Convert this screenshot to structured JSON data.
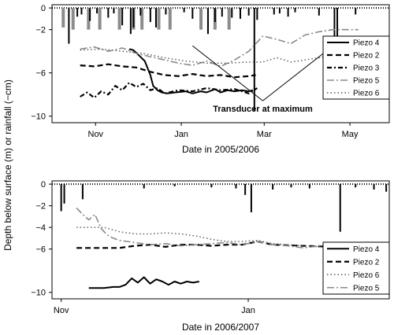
{
  "shared_ylabel": "Depth below surface (m) or rainfall (−cm)",
  "charts": [
    {
      "id": "top",
      "type": "line",
      "xlabel": "Date in 2005/2006",
      "x_tick_labels": [
        "Nov",
        "Jan",
        "Mar",
        "May"
      ],
      "x_tick_days": [
        31,
        92,
        151,
        212
      ],
      "xlim_days": [
        0,
        240
      ],
      "y_ticks": [
        0,
        -2,
        -6,
        -10
      ],
      "ylim": [
        -10.6,
        0.3
      ],
      "legend": [
        "Piezo 4",
        "Piezo 2",
        "Piezo 3",
        "Piezo 5",
        "Piezo 6"
      ],
      "annotation": "Transducer at maximum",
      "annotation_x_day": 150,
      "annotation_y": -9.3,
      "annotation_targets": [
        [
          100,
          -3.5
        ],
        [
          200,
          -3.5
        ]
      ]
    },
    {
      "id": "bottom",
      "type": "line",
      "xlabel": "Date in 2006/2007",
      "x_tick_labels": [
        "Nov",
        "Jan"
      ],
      "x_tick_days": [
        31,
        92
      ],
      "xlim_days": [
        28,
        138
      ],
      "y_ticks": [
        0,
        -2,
        -4,
        -6,
        -10
      ],
      "ylim": [
        -10.6,
        0.3
      ],
      "legend": [
        "Piezo 4",
        "Piezo 2",
        "Piezo 6",
        "Piezo 5"
      ]
    }
  ],
  "chart_data": [
    {
      "type": "line",
      "xlabel": "Date in 2005/2006",
      "ylabel": "Depth below surface (m) or rainfall (−cm)",
      "x_unit": "days since 1 Oct 2005",
      "ylim": [
        -10.6,
        0.3
      ],
      "rain_bars_dark": [
        [
          12,
          -3.3
        ],
        [
          18,
          -0.8
        ],
        [
          21,
          -0.6
        ],
        [
          27,
          -1.2
        ],
        [
          32,
          -0.5
        ],
        [
          40,
          -0.9
        ],
        [
          44,
          -0.5
        ],
        [
          50,
          -1.6
        ],
        [
          56,
          -2.4
        ],
        [
          58,
          -1.8
        ],
        [
          63,
          -0.7
        ],
        [
          70,
          -1.3
        ],
        [
          74,
          -1.8
        ],
        [
          81,
          -0.6
        ],
        [
          94,
          -0.4
        ],
        [
          100,
          -1.0
        ],
        [
          111,
          -2.4
        ],
        [
          116,
          -1.3
        ],
        [
          121,
          -0.8
        ],
        [
          128,
          -0.9
        ],
        [
          134,
          -1.0
        ],
        [
          140,
          -0.7
        ],
        [
          144,
          -9.5
        ],
        [
          146,
          -1.1
        ],
        [
          158,
          -0.6
        ],
        [
          162,
          -0.5
        ],
        [
          168,
          -0.8
        ],
        [
          173,
          -0.4
        ],
        [
          190,
          -0.7
        ],
        [
          201,
          -2.9
        ],
        [
          203,
          -3.0
        ],
        [
          216,
          -0.6
        ]
      ],
      "rain_bars_grey": [
        [
          8,
          -1.8
        ],
        [
          15,
          -2.0
        ],
        [
          26,
          -2.0
        ],
        [
          34,
          -2.0
        ],
        [
          48,
          -2.0
        ],
        [
          58,
          -2.0
        ],
        [
          64,
          -2.0
        ],
        [
          76,
          -2.0
        ],
        [
          84,
          -2.0
        ],
        [
          106,
          -2.0
        ],
        [
          116,
          -2.0
        ],
        [
          126,
          -2.0
        ]
      ],
      "series": [
        {
          "name": "Piezo 4",
          "style": "solid",
          "x": [
            55,
            58,
            62,
            66,
            70,
            72,
            75,
            78,
            82,
            88,
            95,
            100,
            106,
            110,
            116,
            120,
            125,
            130,
            135,
            140,
            143
          ],
          "y": [
            -3.8,
            -3.9,
            -4.4,
            -4.9,
            -6.2,
            -7.2,
            -7.6,
            -7.8,
            -7.9,
            -7.8,
            -7.7,
            -7.9,
            -7.7,
            -7.8,
            -7.5,
            -7.8,
            -7.6,
            -7.7,
            -7.6,
            -7.7,
            -7.6
          ]
        },
        {
          "name": "Piezo 2",
          "style": "dash",
          "x": [
            20,
            30,
            40,
            50,
            60,
            70,
            80,
            90,
            100,
            110,
            120,
            130,
            140,
            145
          ],
          "y": [
            -5.3,
            -5.4,
            -5.2,
            -5.4,
            -5.5,
            -5.9,
            -6.2,
            -6.3,
            -6.1,
            -6.3,
            -6.2,
            -6.4,
            -6.3,
            -6.2
          ]
        },
        {
          "name": "Piezo 3",
          "style": "dashdot",
          "x": [
            20,
            25,
            30,
            35,
            40,
            45,
            50,
            55,
            60,
            65,
            70,
            75,
            80,
            90,
            100,
            110,
            120,
            130,
            140,
            146
          ],
          "y": [
            -8.2,
            -7.8,
            -8.3,
            -7.7,
            -8.0,
            -7.2,
            -7.6,
            -6.9,
            -7.3,
            -7.0,
            -7.6,
            -7.4,
            -7.9,
            -7.6,
            -7.7,
            -7.4,
            -7.6,
            -7.5,
            -7.9,
            -7.4
          ]
        },
        {
          "name": "Piezo 5",
          "style": "longdash",
          "x": [
            20,
            30,
            40,
            50,
            60,
            70,
            80,
            90,
            100,
            110,
            120,
            130,
            140,
            150,
            160,
            170,
            180,
            190,
            200,
            210,
            218
          ],
          "y": [
            -3.8,
            -3.6,
            -4.0,
            -3.7,
            -4.2,
            -4.5,
            -4.8,
            -5.1,
            -5.3,
            -4.9,
            -5.4,
            -4.8,
            -4.0,
            -2.6,
            -2.9,
            -3.3,
            -2.5,
            -2.2,
            -2.0,
            -2.0,
            -2.0
          ]
        },
        {
          "name": "Piezo 6",
          "style": "dot",
          "x": [
            20,
            35,
            50,
            65,
            80,
            95,
            110,
            125,
            140,
            150,
            160,
            170,
            180,
            190,
            200,
            210,
            218
          ],
          "y": [
            -3.9,
            -3.8,
            -4.0,
            -4.2,
            -4.6,
            -4.9,
            -5.1,
            -5.1,
            -5.0,
            -5.0,
            -4.6,
            -5.0,
            -4.8,
            -4.6,
            -4.4,
            -4.2,
            -4.0
          ]
        }
      ]
    },
    {
      "type": "line",
      "xlabel": "Date in 2006/2007",
      "ylabel": "Depth below surface (m) or rainfall (−cm)",
      "x_unit": "days since 1 Oct 2006",
      "ylim": [
        -10.6,
        0.3
      ],
      "rain_bars_dark": [
        [
          31,
          -2.5
        ],
        [
          32,
          -1.8
        ],
        [
          38,
          -1.4
        ],
        [
          58,
          -0.4
        ],
        [
          68,
          -0.2
        ],
        [
          80,
          -0.3
        ],
        [
          88,
          -0.4
        ],
        [
          91,
          -1.0
        ],
        [
          93,
          -2.6
        ],
        [
          100,
          -0.5
        ],
        [
          106,
          -0.3
        ],
        [
          112,
          -0.4
        ],
        [
          122,
          -4.4
        ],
        [
          127,
          -0.3
        ],
        [
          133,
          -0.5
        ],
        [
          137,
          -0.7
        ]
      ],
      "series": [
        {
          "name": "Piezo 4",
          "style": "solid",
          "x": [
            40,
            45,
            48,
            50,
            52,
            54,
            56,
            58,
            60,
            62,
            64,
            66,
            68,
            70,
            72,
            74,
            76
          ],
          "y": [
            -9.6,
            -9.6,
            -9.5,
            -9.5,
            -9.3,
            -8.7,
            -9.1,
            -8.6,
            -9.2,
            -8.8,
            -9.0,
            -9.3,
            -9.0,
            -9.2,
            -9.0,
            -9.1,
            -9.0
          ]
        },
        {
          "name": "Piezo 2",
          "style": "dash",
          "x": [
            36,
            40,
            45,
            50,
            55,
            60,
            65,
            70,
            75,
            80,
            85,
            90,
            95,
            100,
            110,
            120,
            130
          ],
          "y": [
            -5.9,
            -5.9,
            -5.9,
            -5.9,
            -5.7,
            -5.6,
            -5.8,
            -5.6,
            -5.6,
            -5.7,
            -5.6,
            -5.6,
            -5.3,
            -5.6,
            -5.7,
            -5.8,
            -5.9
          ]
        },
        {
          "name": "Piezo 6",
          "style": "dot",
          "x": [
            36,
            40,
            45,
            50,
            55,
            60,
            65,
            70,
            75,
            80,
            85,
            90,
            95,
            100,
            110,
            120,
            125,
            130
          ],
          "y": [
            -4.0,
            -4.0,
            -4.0,
            -4.4,
            -4.6,
            -4.6,
            -4.5,
            -4.6,
            -4.8,
            -5.1,
            -5.3,
            -5.3,
            -5.2,
            -5.5,
            -5.7,
            -5.9,
            -5.9,
            -5.8
          ]
        },
        {
          "name": "Piezo 5",
          "style": "longdash",
          "x": [
            36,
            38,
            40,
            42,
            44,
            46,
            48,
            50,
            55,
            60,
            65,
            70,
            75,
            80,
            85,
            90,
            95,
            100,
            105,
            110,
            115,
            120,
            125,
            130
          ],
          "y": [
            -2.2,
            -2.8,
            -3.3,
            -2.8,
            -4.1,
            -4.7,
            -5.0,
            -5.2,
            -5.4,
            -5.6,
            -5.5,
            -5.7,
            -5.6,
            -5.5,
            -5.4,
            -5.6,
            -5.3,
            -5.6,
            -5.7,
            -5.9,
            -5.7,
            -5.5,
            -5.8,
            -6.1
          ]
        }
      ]
    }
  ]
}
